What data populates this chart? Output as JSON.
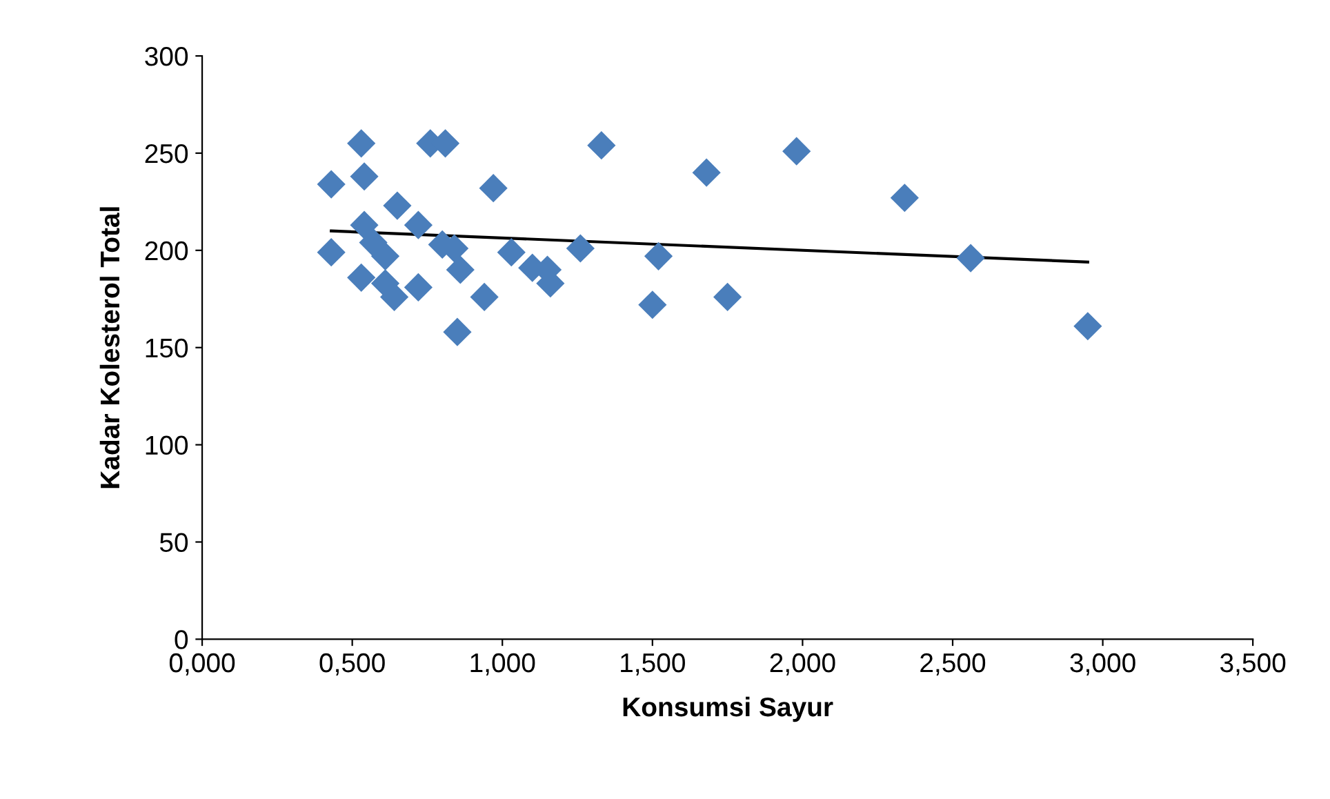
{
  "chart_data": {
    "type": "scatter",
    "xlabel": "Konsumsi Sayur",
    "ylabel": "Kadar Kolesterol Total",
    "xlim": [
      0,
      3.5
    ],
    "ylim": [
      0,
      300
    ],
    "xticks": [
      {
        "value": 0,
        "label": "0,000"
      },
      {
        "value": 0.5,
        "label": "0,500"
      },
      {
        "value": 1,
        "label": "1,000"
      },
      {
        "value": 1.5,
        "label": "1,500"
      },
      {
        "value": 2,
        "label": "2,000"
      },
      {
        "value": 2.5,
        "label": "2,500"
      },
      {
        "value": 3,
        "label": "3,000"
      },
      {
        "value": 3.5,
        "label": "3,500"
      }
    ],
    "yticks": [
      0,
      50,
      100,
      150,
      200,
      250,
      300
    ],
    "grid": false,
    "legend": false,
    "marker": "diamond",
    "series": [
      {
        "color": "#4a7ebb",
        "x": [
          0.53,
          0.76,
          0.81,
          1.33,
          0.43,
          0.54,
          0.97,
          0.65,
          0.54,
          0.72,
          0.57,
          0.61,
          0.8,
          0.84,
          0.43,
          1.03,
          1.26,
          1.52,
          0.86,
          1.1,
          1.15,
          1.16,
          0.53,
          0.61,
          0.64,
          0.72,
          0.94,
          0.85,
          1.5,
          1.68,
          1.98,
          2.34,
          2.56,
          1.75,
          2.95
        ],
        "values": [
          255,
          255,
          255,
          254,
          234,
          238,
          232,
          223,
          213,
          213,
          204,
          197,
          203,
          201,
          199,
          199,
          201,
          197,
          190,
          191,
          190,
          183,
          186,
          183,
          176,
          181,
          176,
          158,
          172,
          240,
          251,
          227,
          196,
          176,
          161
        ]
      },
      {
        "type": "line",
        "marker": "none",
        "color": "#000000",
        "x": [
          0.43,
          2.95
        ],
        "values": [
          210,
          194
        ]
      }
    ]
  }
}
